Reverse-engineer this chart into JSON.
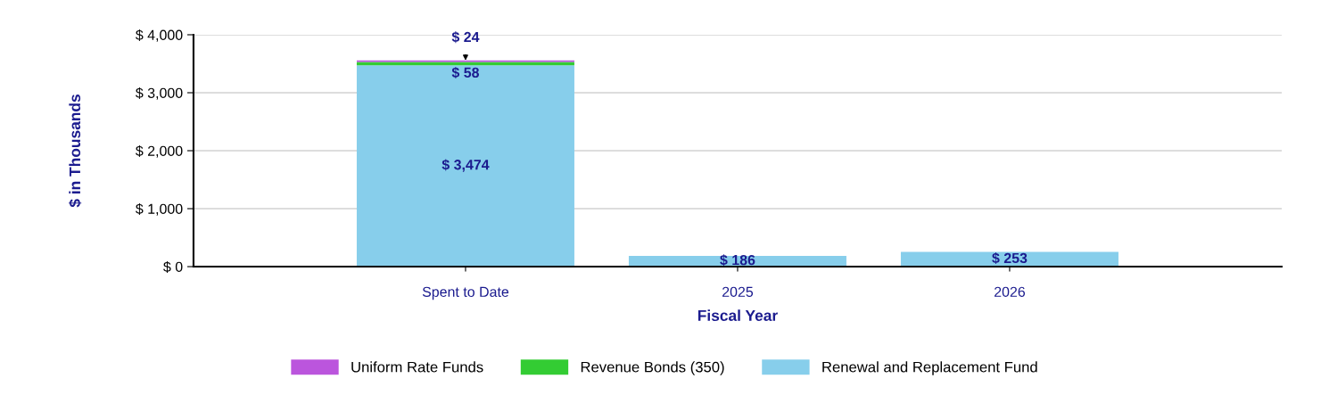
{
  "chart_data": {
    "type": "bar",
    "stacked": true,
    "xlabel": "Fiscal Year",
    "ylabel": "$ in Thousands",
    "categories": [
      "Spent to Date",
      "2025",
      "2026"
    ],
    "series": [
      {
        "name": "Renewal and Replacement Fund",
        "color": "#87ceeb",
        "values": [
          3474,
          186,
          253
        ],
        "value_labels": [
          "$ 3,474",
          "$ 186",
          "$ 253"
        ]
      },
      {
        "name": "Revenue Bonds (350)",
        "color": "#33cc33",
        "values": [
          58,
          null,
          null
        ],
        "value_labels": [
          "$ 58",
          null,
          null
        ]
      },
      {
        "name": "Uniform Rate Funds",
        "color": "#bb55dd",
        "values": [
          24,
          null,
          null
        ],
        "value_labels": [
          "$ 24",
          null,
          null
        ]
      }
    ],
    "ylim": [
      0,
      4000
    ],
    "yticks": [
      {
        "value": 0,
        "label": "$ 0"
      },
      {
        "value": 1000,
        "label": "$ 1,000"
      },
      {
        "value": 2000,
        "label": "$ 2,000"
      },
      {
        "value": 3000,
        "label": "$ 3,000"
      },
      {
        "value": 4000,
        "label": "$ 4,000"
      }
    ],
    "grid": "y",
    "legend": "bottom"
  }
}
